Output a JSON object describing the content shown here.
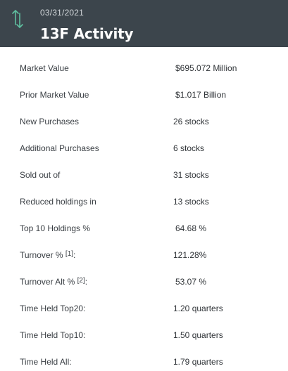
{
  "header": {
    "date": "03/31/2021",
    "title": "13F Activity",
    "icon": "vertical-swap-arrows-icon",
    "icon_color": "#5fbfa0",
    "background": "#3c454c"
  },
  "rows": [
    {
      "label": "Market Value",
      "sup": "",
      "suffix": "",
      "value": "$695.072 Million"
    },
    {
      "label": "Prior Market Value",
      "sup": "",
      "suffix": "",
      "value": "$1.017 Billion"
    },
    {
      "label": "New Purchases",
      "sup": "",
      "suffix": "",
      "value": "26 stocks"
    },
    {
      "label": "Additional Purchases",
      "sup": "",
      "suffix": "",
      "value": "6 stocks"
    },
    {
      "label": "Sold out of",
      "sup": "",
      "suffix": "",
      "value": "31 stocks"
    },
    {
      "label": "Reduced holdings in",
      "sup": "",
      "suffix": "",
      "value": "13 stocks"
    },
    {
      "label": "Top 10 Holdings %",
      "sup": "",
      "suffix": "",
      "value": "64.68 %"
    },
    {
      "label": "Turnover %",
      "sup": "[1]",
      "suffix": ":",
      "value": "121.28%"
    },
    {
      "label": "Turnover Alt %",
      "sup": "[2]",
      "suffix": ":",
      "value": "53.07 %"
    },
    {
      "label": "Time Held Top20:",
      "sup": "",
      "suffix": "",
      "value": "1.20 quarters"
    },
    {
      "label": "Time Held Top10:",
      "sup": "",
      "suffix": "",
      "value": "1.50 quarters"
    },
    {
      "label": "Time Held All:",
      "sup": "",
      "suffix": "",
      "value": "1.79 quarters"
    }
  ]
}
